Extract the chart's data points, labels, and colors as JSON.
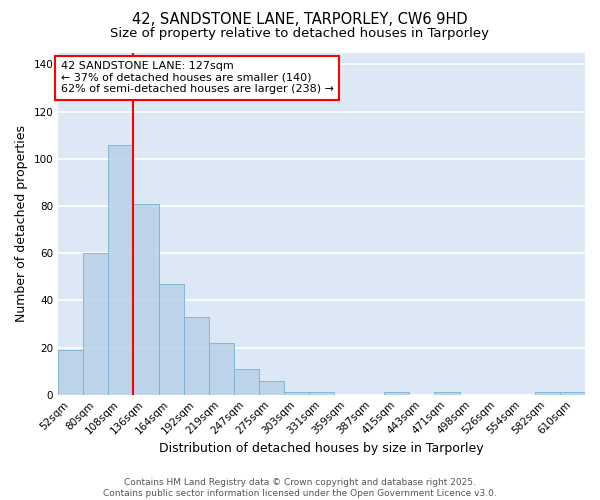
{
  "title": "42, SANDSTONE LANE, TARPORLEY, CW6 9HD",
  "subtitle": "Size of property relative to detached houses in Tarporley",
  "xlabel": "Distribution of detached houses by size in Tarporley",
  "ylabel": "Number of detached properties",
  "bar_labels": [
    "52sqm",
    "80sqm",
    "108sqm",
    "136sqm",
    "164sqm",
    "192sqm",
    "219sqm",
    "247sqm",
    "275sqm",
    "303sqm",
    "331sqm",
    "359sqm",
    "387sqm",
    "415sqm",
    "443sqm",
    "471sqm",
    "498sqm",
    "526sqm",
    "554sqm",
    "582sqm",
    "610sqm"
  ],
  "bar_values": [
    19,
    60,
    106,
    81,
    47,
    33,
    22,
    11,
    6,
    1,
    1,
    0,
    0,
    1,
    0,
    1,
    0,
    0,
    0,
    1,
    1
  ],
  "bar_color": "#b8d0e8",
  "bar_edgecolor": "#7aafd0",
  "bar_alpha": 0.85,
  "vline_x": 2.5,
  "vline_color": "red",
  "annotation_text": "42 SANDSTONE LANE: 127sqm\n← 37% of detached houses are smaller (140)\n62% of semi-detached houses are larger (238) →",
  "ylim": [
    0,
    145
  ],
  "yticks": [
    0,
    20,
    40,
    60,
    80,
    100,
    120,
    140
  ],
  "background_color": "#dce8f5",
  "grid_color": "white",
  "footer": "Contains HM Land Registry data © Crown copyright and database right 2025.\nContains public sector information licensed under the Open Government Licence v3.0.",
  "title_fontsize": 10.5,
  "subtitle_fontsize": 9.5,
  "axis_label_fontsize": 9,
  "tick_fontsize": 7.5,
  "annotation_fontsize": 8,
  "footer_fontsize": 6.5
}
